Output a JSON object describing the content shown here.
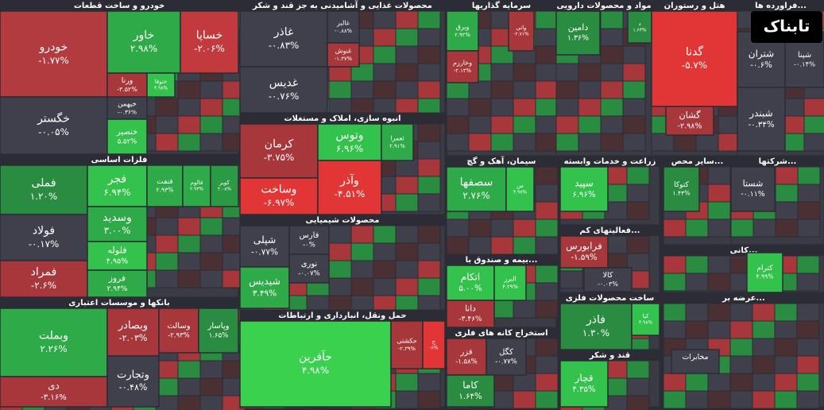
{
  "logo": "تابناک",
  "sectors": [
    {
      "title": "خودرو و ساخت قطعات",
      "tiles": [
        {
          "name": "خودرو",
          "change": "-۱.۷۷%",
          "color": "#b23b3f"
        },
        {
          "name": "خگستر",
          "change": "-۰.۰۵%",
          "color": "#3f404b"
        },
        {
          "name": "خاور",
          "change": "۲.۹۸%",
          "color": "#2faa48"
        },
        {
          "name": "خساپا",
          "change": "-۲.۰۶%",
          "color": "#c23a3e"
        },
        {
          "name": "ورنا",
          "change": "-۳.۵۲%",
          "color": "#a8373c"
        },
        {
          "name": "خیهمن",
          "change": "-۰.۳۶%",
          "color": "#3f404b"
        },
        {
          "name": "خنصیر",
          "change": "۵.۵۲%",
          "color": "#33c24c"
        },
        {
          "name": "ختوقا",
          "change": "۴.۹۸%",
          "color": "#33c24c"
        }
      ]
    },
    {
      "title": "فلزات اساسی",
      "tiles": [
        {
          "name": "فملی",
          "change": "۱.۲۰%",
          "color": "#2a8c40"
        },
        {
          "name": "فولاد",
          "change": "-۰.۱۷%",
          "color": "#3f404b"
        },
        {
          "name": "فمراد",
          "change": "-۲.۶%",
          "color": "#a8373c"
        },
        {
          "name": "فجر",
          "change": "۶.۹۴%",
          "color": "#33c24c"
        },
        {
          "name": "وسدید",
          "change": "۳.۰۰%",
          "color": "#2faa48"
        },
        {
          "name": "فلوله",
          "change": "۴.۹۵%",
          "color": "#33c24c"
        },
        {
          "name": "فروز",
          "change": "۲.۹۴%",
          "color": "#2faa48"
        },
        {
          "name": "فنفت",
          "change": "۲.۹۳%",
          "color": "#2faa48"
        },
        {
          "name": "فالوم",
          "change": "۲.۹۳%",
          "color": "#2faa48"
        },
        {
          "name": "کویر",
          "change": "۲.۰۸%",
          "color": "#2a9a44"
        }
      ]
    },
    {
      "title": "بانکها و موسسات اعتباری",
      "tiles": [
        {
          "name": "وبملت",
          "change": "۲.۲۶%",
          "color": "#2faa48"
        },
        {
          "name": "دی",
          "change": "-۳.۱۶%",
          "color": "#a8373c"
        },
        {
          "name": "وبصادر",
          "change": "-۲.۰۳%",
          "color": "#a8373c"
        },
        {
          "name": "وتجارت",
          "change": "-۰.۴۸%",
          "color": "#3f404b"
        },
        {
          "name": "وسالت",
          "change": "-۲.۹۳%",
          "color": "#a8373c"
        },
        {
          "name": "وپاسار",
          "change": "۱.۶۵%",
          "color": "#2a8c40"
        }
      ]
    },
    {
      "title": "محصولات غذایی و آشامیدنی به جز قند و شکر",
      "tiles": [
        {
          "name": "غاذر",
          "change": "-۰.۸۳%",
          "color": "#3f404b"
        },
        {
          "name": "غدیس",
          "change": "-۰.۷۶%",
          "color": "#3f404b"
        },
        {
          "name": "غالبر",
          "change": "-۰.۸۸%",
          "color": "#3f404b"
        },
        {
          "name": "غنوش",
          "change": "-۱.۳۷%",
          "color": "#a8373c"
        }
      ]
    },
    {
      "title": "انبوه سازی، املاک و مستغلات",
      "tiles": [
        {
          "name": "کرمان",
          "change": "-۳.۷۵%",
          "color": "#a8373c"
        },
        {
          "name": "وساخت",
          "change": "-۶.۹۷%",
          "color": "#e23636"
        },
        {
          "name": "وتوس",
          "change": "۶.۹۶%",
          "color": "#33c24c"
        },
        {
          "name": "وآذر",
          "change": "-۴.۵۱%",
          "color": "#e23636"
        },
        {
          "name": "ثعمرا",
          "change": "۲.۹۱%",
          "color": "#2faa48"
        }
      ]
    },
    {
      "title": "محصولات شیمیایی",
      "tiles": [
        {
          "name": "شپلی",
          "change": "-۰.۷۷%",
          "color": "#3f404b"
        },
        {
          "name": "شیدیس",
          "change": "۳.۴۹%",
          "color": "#2faa48"
        },
        {
          "name": "فارس",
          "change": "-۰%",
          "color": "#3f404b"
        },
        {
          "name": "نوری",
          "change": "-۰.۰۷%",
          "color": "#3f404b"
        }
      ]
    },
    {
      "title": "حمل ونقل، انبارداری و ارتباطات",
      "tiles": [
        {
          "name": "حآفرین",
          "change": "۴.۹۸%",
          "color": "#3ad14f"
        },
        {
          "name": "حکشتی",
          "change": "-۲.۳۹%",
          "color": "#a8373c"
        },
        {
          "name": "ح",
          "change": "-۶%",
          "color": "#e23636"
        }
      ]
    },
    {
      "title": "سرمایه گذاریها",
      "tiles": [
        {
          "name": "وبرق",
          "change": "۲.۹۲%",
          "color": "#2faa48"
        },
        {
          "name": "وخارزم",
          "change": "-۲.۱۳%",
          "color": "#a8373c"
        },
        {
          "name": "واتی",
          "change": "-۲.۷۱%",
          "color": "#a8373c"
        }
      ]
    },
    {
      "title": "مواد و محصولات دارویی",
      "tiles": [
        {
          "name": "دامین",
          "change": "۱.۳۶%",
          "color": "#2a8c40"
        },
        {
          "name": "د",
          "change": "۱.۶۳%",
          "color": "#2a8c40"
        }
      ]
    },
    {
      "title": "هتل و رستوران",
      "tiles": [
        {
          "name": "گدنا",
          "change": "-۵.۷%",
          "color": "#e23636"
        },
        {
          "name": "گشان",
          "change": "-۲.۹۸%",
          "color": "#a8373c"
        }
      ]
    },
    {
      "title": "فراورده ها...",
      "tiles": [
        {
          "name": "شتران",
          "change": "-۰.۶%",
          "color": "#3f404b"
        },
        {
          "name": "شپنا",
          "change": "-۰.۱۴%",
          "color": "#3f404b"
        },
        {
          "name": "شبندر",
          "change": "-۰.۳۴%",
          "color": "#3f404b"
        }
      ]
    },
    {
      "title": "سیمان، آهک و گچ",
      "tiles": [
        {
          "name": "سصفها",
          "change": "۲.۷۶%",
          "color": "#2faa48"
        },
        {
          "name": "س",
          "change": "۴.۹۷%",
          "color": "#33c24c"
        }
      ]
    },
    {
      "title": "بیمه و صندوق با...",
      "tiles": [
        {
          "name": "اتکام",
          "change": "۵.۰۰%",
          "color": "#33c24c"
        },
        {
          "name": "البرز",
          "change": "۴.۲۹%",
          "color": "#33c24c"
        },
        {
          "name": "دانا",
          "change": "-۳.۴۶%",
          "color": "#a8373c"
        }
      ]
    },
    {
      "title": "استخراج کانه های فلزی",
      "tiles": [
        {
          "name": "فزر",
          "change": "-۱.۵۸%",
          "color": "#a8373c"
        },
        {
          "name": "کگل",
          "change": "-۰.۷۷%",
          "color": "#3f404b"
        },
        {
          "name": "کاما",
          "change": "۱.۶۴%",
          "color": "#2a8c40"
        }
      ]
    },
    {
      "title": "زراعت و خدمات وابسته",
      "tiles": [
        {
          "name": "سپید",
          "change": "۶.۹۶%",
          "color": "#33c24c"
        }
      ]
    },
    {
      "title": "فعالیتهای کم...",
      "tiles": [
        {
          "name": "فرابورس",
          "change": "-۱.۵۹%",
          "color": "#a8373c"
        },
        {
          "name": "کالا",
          "change": "-۰.۰۳%",
          "color": "#3f404b"
        }
      ]
    },
    {
      "title": "ساخت محصولات فلزی",
      "tiles": [
        {
          "name": "فاذر",
          "change": "۱.۳۰%",
          "color": "#2a8c40"
        },
        {
          "name": "کیا",
          "change": "۴.۹۸%",
          "color": "#33c24c"
        }
      ]
    },
    {
      "title": "قند و شکر",
      "tiles": [
        {
          "name": "قچار",
          "change": "۴.۳۵%",
          "color": "#33c24c"
        }
      ]
    },
    {
      "title": "سایر محص...",
      "tiles": [
        {
          "name": "کتوکا",
          "change": "۱.۴۳%",
          "color": "#2a8c40"
        }
      ]
    },
    {
      "title": "شرکتها...",
      "tiles": [
        {
          "name": "شستا",
          "change": "-۰.۱۱%",
          "color": "#3f404b"
        }
      ]
    },
    {
      "title": "کانی...",
      "tiles": [
        {
          "name": "کترام",
          "change": "۴.۹۹%",
          "color": "#33c24c"
        }
      ]
    },
    {
      "title": "عرضه بر...",
      "tiles": [
        {
          "name": "مخابرات",
          "change": "",
          "color": "#3f404b"
        }
      ]
    }
  ]
}
